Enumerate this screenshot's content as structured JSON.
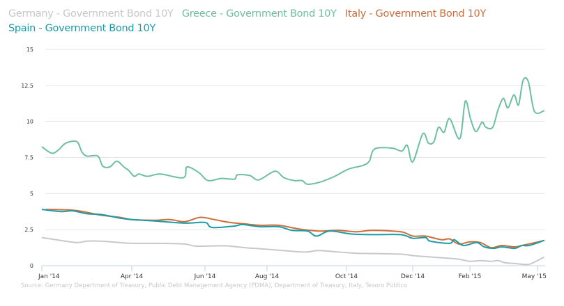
{
  "legend": [
    {
      "label": "Germany - Government Bond 10Y",
      "color": "#c8c8c8"
    },
    {
      "label": "Greece - Government Bond 10Y",
      "color": "#6dbf9f"
    },
    {
      "label": "Italy - Government Bond 10Y",
      "color": "#cc6e3c"
    },
    {
      "label": "Spain - Government Bond 10Y",
      "color": "#1a9ba8"
    }
  ],
  "source": "Source: Germany Department of Treasury, Public Debt Management Agency (PDMA), Department of Treasury, Italy, Tesoro Público",
  "chart_data": {
    "type": "line",
    "xlabel": "",
    "ylabel": "",
    "ylim": [
      0,
      15
    ],
    "yticks": [
      "0",
      "2.5",
      "5",
      "7.5",
      "10",
      "12.5",
      "15"
    ],
    "xticks": [
      {
        "date": "2014-01-01",
        "label": "Jan '14"
      },
      {
        "date": "2014-04-01",
        "label": "Apr '14"
      },
      {
        "date": "2014-06-01",
        "label": "Jun '14"
      },
      {
        "date": "2014-08-01",
        "label": "Aug '14"
      },
      {
        "date": "2014-10-01",
        "label": "Oct '14"
      },
      {
        "date": "2014-12-01",
        "label": "Dec '14"
      },
      {
        "date": "2015-02-01",
        "label": "Feb '15"
      },
      {
        "date": "2015-05-01",
        "label": "May '15"
      }
    ],
    "grid": true,
    "legend_placement": "top-left",
    "series": [
      {
        "name": "Germany - Government Bond 10Y",
        "color": "#c8c8c8",
        "points": [
          [
            "2014-01-01",
            1.95
          ],
          [
            "2014-01-20",
            1.75
          ],
          [
            "2014-02-05",
            1.6
          ],
          [
            "2014-02-15",
            1.7
          ],
          [
            "2014-03-01",
            1.7
          ],
          [
            "2014-03-20",
            1.6
          ],
          [
            "2014-04-01",
            1.55
          ],
          [
            "2014-04-20",
            1.55
          ],
          [
            "2014-05-15",
            1.5
          ],
          [
            "2014-05-25",
            1.35
          ],
          [
            "2014-06-20",
            1.38
          ],
          [
            "2014-07-10",
            1.25
          ],
          [
            "2014-07-30",
            1.15
          ],
          [
            "2014-08-20",
            1.0
          ],
          [
            "2014-09-01",
            0.95
          ],
          [
            "2014-09-10",
            1.05
          ],
          [
            "2014-10-01",
            0.9
          ],
          [
            "2014-10-15",
            0.85
          ],
          [
            "2014-11-01",
            0.83
          ],
          [
            "2014-11-20",
            0.8
          ],
          [
            "2014-12-01",
            0.7
          ],
          [
            "2014-12-10",
            0.65
          ],
          [
            "2015-01-01",
            0.55
          ],
          [
            "2015-01-20",
            0.45
          ],
          [
            "2015-02-01",
            0.3
          ],
          [
            "2015-02-15",
            0.35
          ],
          [
            "2015-03-01",
            0.3
          ],
          [
            "2015-03-10",
            0.35
          ],
          [
            "2015-03-20",
            0.2
          ],
          [
            "2015-04-01",
            0.15
          ],
          [
            "2015-04-17",
            0.08
          ],
          [
            "2015-04-25",
            0.2
          ],
          [
            "2015-05-10",
            0.6
          ]
        ]
      },
      {
        "name": "Greece - Government Bond 10Y",
        "color": "#6dbf9f",
        "points": [
          [
            "2014-01-01",
            8.25
          ],
          [
            "2014-01-11",
            7.8
          ],
          [
            "2014-01-18",
            8.05
          ],
          [
            "2014-01-25",
            8.5
          ],
          [
            "2014-02-05",
            8.6
          ],
          [
            "2014-02-10",
            7.9
          ],
          [
            "2014-02-15",
            7.6
          ],
          [
            "2014-02-26",
            7.6
          ],
          [
            "2014-03-03",
            6.9
          ],
          [
            "2014-03-10",
            6.85
          ],
          [
            "2014-03-17",
            7.25
          ],
          [
            "2014-03-24",
            6.85
          ],
          [
            "2014-03-29",
            6.6
          ],
          [
            "2014-04-03",
            6.2
          ],
          [
            "2014-04-07",
            6.35
          ],
          [
            "2014-04-14",
            6.2
          ],
          [
            "2014-04-25",
            6.35
          ],
          [
            "2014-05-14",
            6.1
          ],
          [
            "2014-05-17",
            6.85
          ],
          [
            "2014-05-27",
            6.45
          ],
          [
            "2014-06-04",
            5.9
          ],
          [
            "2014-06-17",
            6.05
          ],
          [
            "2014-06-30",
            6.0
          ],
          [
            "2014-07-03",
            6.3
          ],
          [
            "2014-07-15",
            6.25
          ],
          [
            "2014-07-24",
            5.95
          ],
          [
            "2014-08-07",
            6.55
          ],
          [
            "2014-08-14",
            6.1
          ],
          [
            "2014-08-22",
            5.9
          ],
          [
            "2014-08-28",
            5.9
          ],
          [
            "2014-09-01",
            5.65
          ],
          [
            "2014-09-11",
            5.8
          ],
          [
            "2014-09-22",
            6.2
          ],
          [
            "2014-10-03",
            6.7
          ],
          [
            "2014-10-16",
            6.95
          ],
          [
            "2014-10-22",
            7.25
          ],
          [
            "2014-10-27",
            8.1
          ],
          [
            "2014-11-12",
            8.15
          ],
          [
            "2014-11-21",
            7.95
          ],
          [
            "2014-11-26",
            8.35
          ],
          [
            "2014-12-01",
            7.2
          ],
          [
            "2014-12-12",
            9.15
          ],
          [
            "2014-12-18",
            8.5
          ],
          [
            "2014-12-24",
            8.6
          ],
          [
            "2014-12-29",
            9.6
          ],
          [
            "2015-01-04",
            9.25
          ],
          [
            "2015-01-10",
            10.2
          ],
          [
            "2015-01-21",
            8.8
          ],
          [
            "2015-01-27",
            11.4
          ],
          [
            "2015-02-02",
            10.15
          ],
          [
            "2015-02-09",
            9.3
          ],
          [
            "2015-02-17",
            9.95
          ],
          [
            "2015-02-22",
            9.6
          ],
          [
            "2015-03-03",
            9.6
          ],
          [
            "2015-03-10",
            10.8
          ],
          [
            "2015-03-17",
            11.6
          ],
          [
            "2015-03-23",
            10.95
          ],
          [
            "2015-03-31",
            11.85
          ],
          [
            "2015-04-06",
            11.15
          ],
          [
            "2015-04-12",
            12.85
          ],
          [
            "2015-04-19",
            12.75
          ],
          [
            "2015-04-27",
            10.7
          ],
          [
            "2015-05-10",
            10.75
          ]
        ]
      },
      {
        "name": "Italy - Government Bond 10Y",
        "color": "#cc6e3c",
        "points": [
          [
            "2014-01-05",
            3.9
          ],
          [
            "2014-02-01",
            3.85
          ],
          [
            "2014-02-15",
            3.7
          ],
          [
            "2014-03-01",
            3.5
          ],
          [
            "2014-03-20",
            3.35
          ],
          [
            "2014-04-01",
            3.2
          ],
          [
            "2014-04-20",
            3.15
          ],
          [
            "2014-05-03",
            3.2
          ],
          [
            "2014-05-15",
            3.05
          ],
          [
            "2014-05-28",
            3.35
          ],
          [
            "2014-06-10",
            3.2
          ],
          [
            "2014-06-25",
            3.0
          ],
          [
            "2014-07-10",
            2.9
          ],
          [
            "2014-07-25",
            2.8
          ],
          [
            "2014-08-10",
            2.8
          ],
          [
            "2014-08-25",
            2.55
          ],
          [
            "2014-09-10",
            2.4
          ],
          [
            "2014-09-25",
            2.45
          ],
          [
            "2014-10-10",
            2.35
          ],
          [
            "2014-10-25",
            2.45
          ],
          [
            "2014-11-20",
            2.35
          ],
          [
            "2014-12-01",
            2.05
          ],
          [
            "2014-12-15",
            2.05
          ],
          [
            "2015-01-01",
            1.8
          ],
          [
            "2015-01-10",
            1.85
          ],
          [
            "2015-01-20",
            1.5
          ],
          [
            "2015-02-01",
            1.65
          ],
          [
            "2015-02-15",
            1.6
          ],
          [
            "2015-03-01",
            1.25
          ],
          [
            "2015-03-15",
            1.4
          ],
          [
            "2015-04-01",
            1.3
          ],
          [
            "2015-04-15",
            1.45
          ],
          [
            "2015-05-10",
            1.75
          ]
        ]
      },
      {
        "name": "Spain - Government Bond 10Y",
        "color": "#1a9ba8",
        "points": [
          [
            "2014-01-01",
            3.9
          ],
          [
            "2014-01-20",
            3.75
          ],
          [
            "2014-02-01",
            3.8
          ],
          [
            "2014-02-15",
            3.6
          ],
          [
            "2014-03-01",
            3.55
          ],
          [
            "2014-03-20",
            3.3
          ],
          [
            "2014-04-01",
            3.2
          ],
          [
            "2014-04-20",
            3.1
          ],
          [
            "2014-05-15",
            2.95
          ],
          [
            "2014-06-01",
            3.0
          ],
          [
            "2014-06-08",
            2.65
          ],
          [
            "2014-06-30",
            2.75
          ],
          [
            "2014-07-08",
            2.85
          ],
          [
            "2014-07-25",
            2.7
          ],
          [
            "2014-08-10",
            2.7
          ],
          [
            "2014-08-20",
            2.45
          ],
          [
            "2014-09-01",
            2.4
          ],
          [
            "2014-09-08",
            2.05
          ],
          [
            "2014-09-18",
            2.4
          ],
          [
            "2014-10-05",
            2.2
          ],
          [
            "2014-10-25",
            2.15
          ],
          [
            "2014-11-20",
            2.15
          ],
          [
            "2014-12-01",
            1.9
          ],
          [
            "2014-12-15",
            1.95
          ],
          [
            "2014-12-20",
            1.7
          ],
          [
            "2015-01-10",
            1.55
          ],
          [
            "2015-01-15",
            1.8
          ],
          [
            "2015-01-25",
            1.4
          ],
          [
            "2015-02-10",
            1.6
          ],
          [
            "2015-02-20",
            1.3
          ],
          [
            "2015-03-05",
            1.2
          ],
          [
            "2015-03-15",
            1.3
          ],
          [
            "2015-04-01",
            1.2
          ],
          [
            "2015-04-10",
            1.4
          ],
          [
            "2015-04-20",
            1.4
          ],
          [
            "2015-05-10",
            1.75
          ]
        ]
      }
    ]
  }
}
